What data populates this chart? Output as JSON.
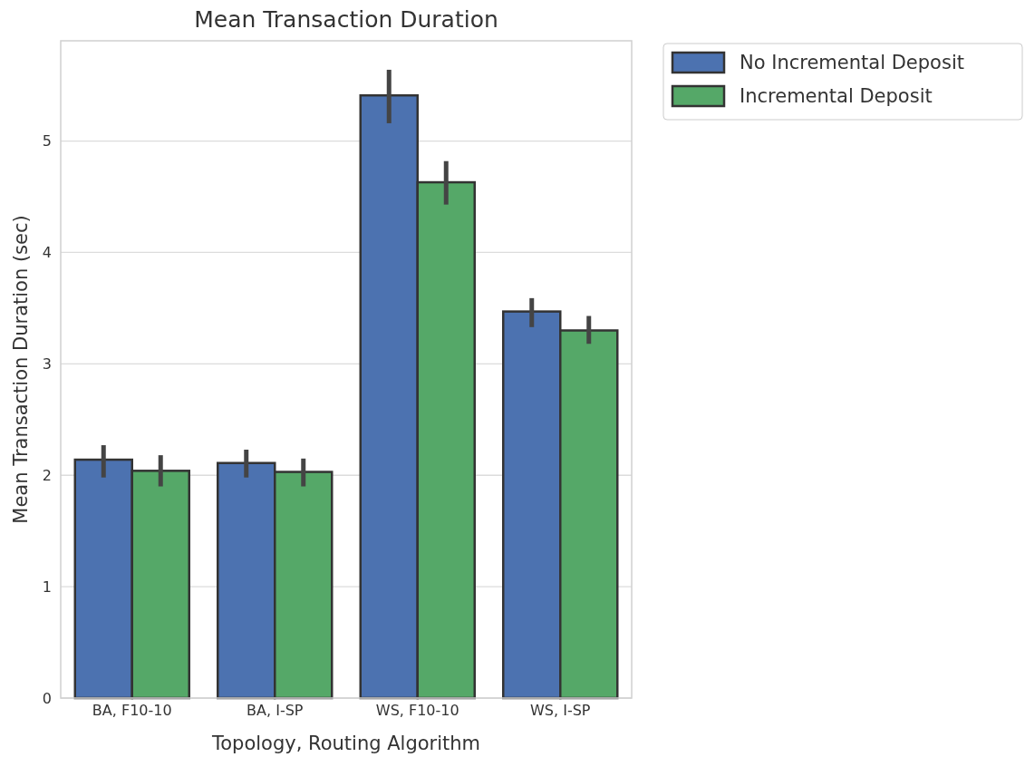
{
  "chart_data": {
    "type": "bar",
    "title": "Mean Transaction Duration",
    "xlabel": "Topology, Routing Algorithm",
    "ylabel": "Mean Transaction Duration (sec)",
    "categories": [
      "BA, F10-10",
      "BA, I-SP",
      "WS, F10-10",
      "WS, I-SP"
    ],
    "series": [
      {
        "name": "No Incremental Deposit",
        "color": "#4c72b0",
        "values": [
          2.14,
          2.11,
          5.41,
          3.47
        ],
        "errors": [
          [
            1.98,
            2.27
          ],
          [
            1.98,
            2.23
          ],
          [
            5.16,
            5.64
          ],
          [
            3.33,
            3.59
          ]
        ]
      },
      {
        "name": "Incremental Deposit",
        "color": "#55a868",
        "values": [
          2.04,
          2.03,
          4.63,
          3.3
        ],
        "errors": [
          [
            1.9,
            2.18
          ],
          [
            1.9,
            2.15
          ],
          [
            4.43,
            4.82
          ],
          [
            3.18,
            3.43
          ]
        ]
      }
    ],
    "ylim": [
      0,
      5.9
    ],
    "yticks": [
      0,
      1,
      2,
      3,
      4,
      5
    ],
    "grid": "y",
    "legend": "top right"
  }
}
